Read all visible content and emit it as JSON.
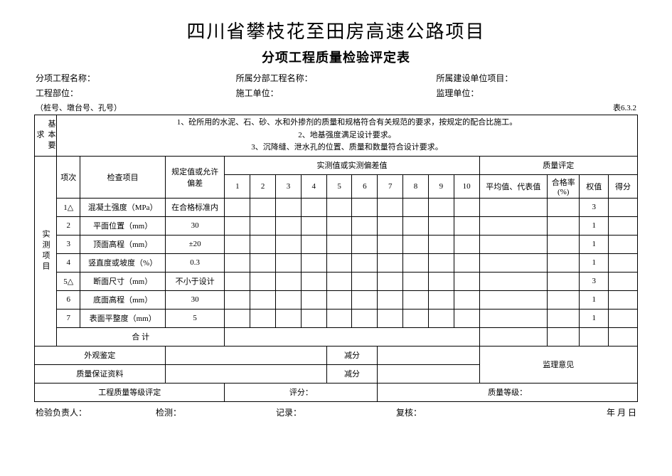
{
  "title_main": "四川省攀枝花至田房高速公路项目",
  "title_sub": "分项工程质量检验评定表",
  "meta": {
    "row1": {
      "a": "分项工程名称：",
      "b": "所属分部工程名称：",
      "c": "所属建设单位项目："
    },
    "row2": {
      "a": "工程部位：",
      "b": "施工单位：",
      "c": "监理单位："
    },
    "row3": {
      "a": "（桩号、墩台号、孔号）",
      "b": "表6.3.2"
    }
  },
  "basic_req_label": "基本要求",
  "basic_req_text": "1、砼所用的水泥、石、砂、水和外掺剂的质量和规格符合有关规范的要求，按规定的配合比施工。\n2、地基强度满足设计要求。\n3、沉降缝、泄水孔的位置、质量和数量符合设计要求。",
  "measure_label": "实测项目",
  "headers": {
    "idx": "项次",
    "item": "检查项目",
    "spec": "规定值或允许偏差",
    "measure_group": "实测值或实测偏差值",
    "quality_group": "质量评定",
    "nums": [
      "1",
      "2",
      "3",
      "4",
      "5",
      "6",
      "7",
      "8",
      "9",
      "10"
    ],
    "avg": "平均值、代表值",
    "rate": "合格率(%)",
    "weight": "权值",
    "score": "得分"
  },
  "rows": [
    {
      "idx": "1△",
      "item": "混凝土强度（MPa）",
      "spec": "在合格标准内",
      "weight": "3"
    },
    {
      "idx": "2",
      "item": "平面位置（mm）",
      "spec": "30",
      "weight": "1"
    },
    {
      "idx": "3",
      "item": "顶面高程（mm）",
      "spec": "±20",
      "weight": "1"
    },
    {
      "idx": "4",
      "item": "竖直度或坡度（%）",
      "spec": "0.3",
      "weight": "1"
    },
    {
      "idx": "5△",
      "item": "断面尺寸（mm）",
      "spec": "不小于设计",
      "weight": "3"
    },
    {
      "idx": "6",
      "item": "底面高程（mm）",
      "spec": "30",
      "weight": "1"
    },
    {
      "idx": "7",
      "item": "表面平整度（mm）",
      "spec": "5",
      "weight": "1"
    }
  ],
  "subtotal": "合  计",
  "bottom": {
    "appearance": "外观鉴定",
    "deduct": "减分",
    "guarantee": "质量保证资料",
    "supervisor": "监理意见",
    "grade_eval": "工程质量等级评定",
    "score_label": "评分：",
    "grade_label": "质量等级："
  },
  "footer": {
    "a": "检验负责人：",
    "b": "检测：",
    "c": "记录：",
    "d": "复核：",
    "e": "年    月    日"
  }
}
